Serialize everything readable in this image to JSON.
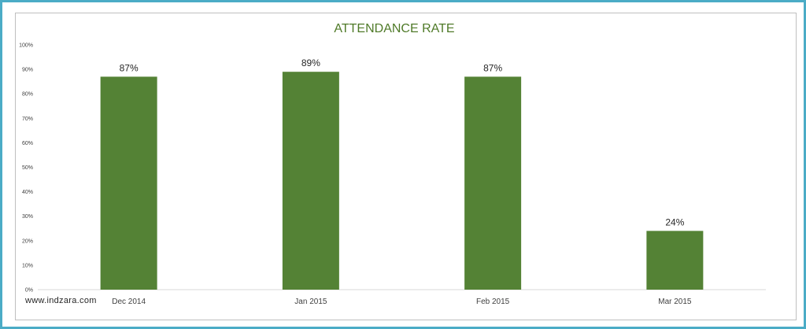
{
  "chart_data": {
    "type": "bar",
    "title": "ATTENDANCE RATE",
    "categories": [
      "Dec 2014",
      "Jan 2015",
      "Feb 2015",
      "Mar 2015"
    ],
    "values": [
      0.87,
      0.89,
      0.87,
      0.24
    ],
    "data_labels": [
      "87%",
      "89%",
      "87%",
      "24%"
    ],
    "ylim": [
      0,
      1
    ],
    "y_ticks": [
      0,
      0.1,
      0.2,
      0.3,
      0.4,
      0.5,
      0.6,
      0.7,
      0.8,
      0.9,
      1.0
    ],
    "y_tick_labels": [
      "0%",
      "10%",
      "20%",
      "30%",
      "40%",
      "50%",
      "60%",
      "70%",
      "80%",
      "90%",
      "100%"
    ],
    "xlabel": "",
    "ylabel": "",
    "grid": false,
    "legend": "none",
    "bar_color": "#548235"
  },
  "watermark": "www.indzara.com",
  "colors": {
    "frame": "#4bacc6",
    "title": "#4f7a28"
  }
}
